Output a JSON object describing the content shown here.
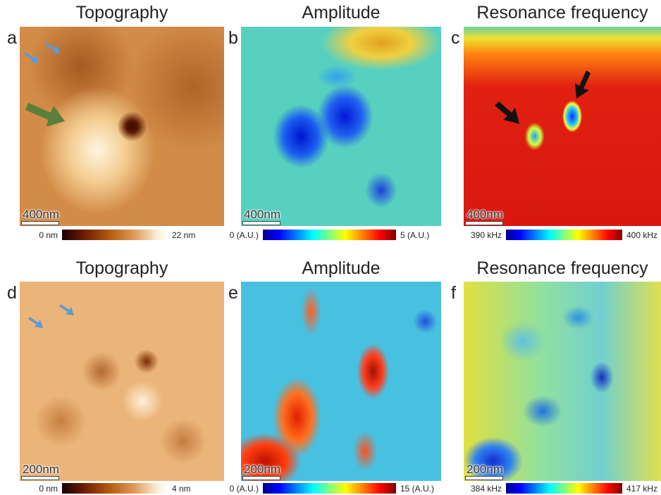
{
  "panels": [
    {
      "letter": "a",
      "title": "Topography",
      "scale_bar": "400nm",
      "colorbar": {
        "min": "0 nm",
        "max": "22 nm"
      }
    },
    {
      "letter": "b",
      "title": "Amplitude",
      "scale_bar": "400nm",
      "colorbar": {
        "min": "0 (A.U.)",
        "max": "5 (A.U.)"
      }
    },
    {
      "letter": "c",
      "title": "Resonance frequency",
      "scale_bar": "400nm",
      "colorbar": {
        "min": "390 kHz",
        "max": "400 kHz"
      }
    },
    {
      "letter": "d",
      "title": "Topography",
      "scale_bar": "200nm",
      "colorbar": {
        "min": "0 nm",
        "max": "4 nm"
      }
    },
    {
      "letter": "e",
      "title": "Amplitude",
      "scale_bar": "200nm",
      "colorbar": {
        "min": "0 (A.U.)",
        "max": "15 (A.U.)"
      }
    },
    {
      "letter": "f",
      "title": "Resonance frequency",
      "scale_bar": "200nm",
      "colorbar": {
        "min": "384 kHz",
        "max": "417 kHz"
      }
    }
  ]
}
